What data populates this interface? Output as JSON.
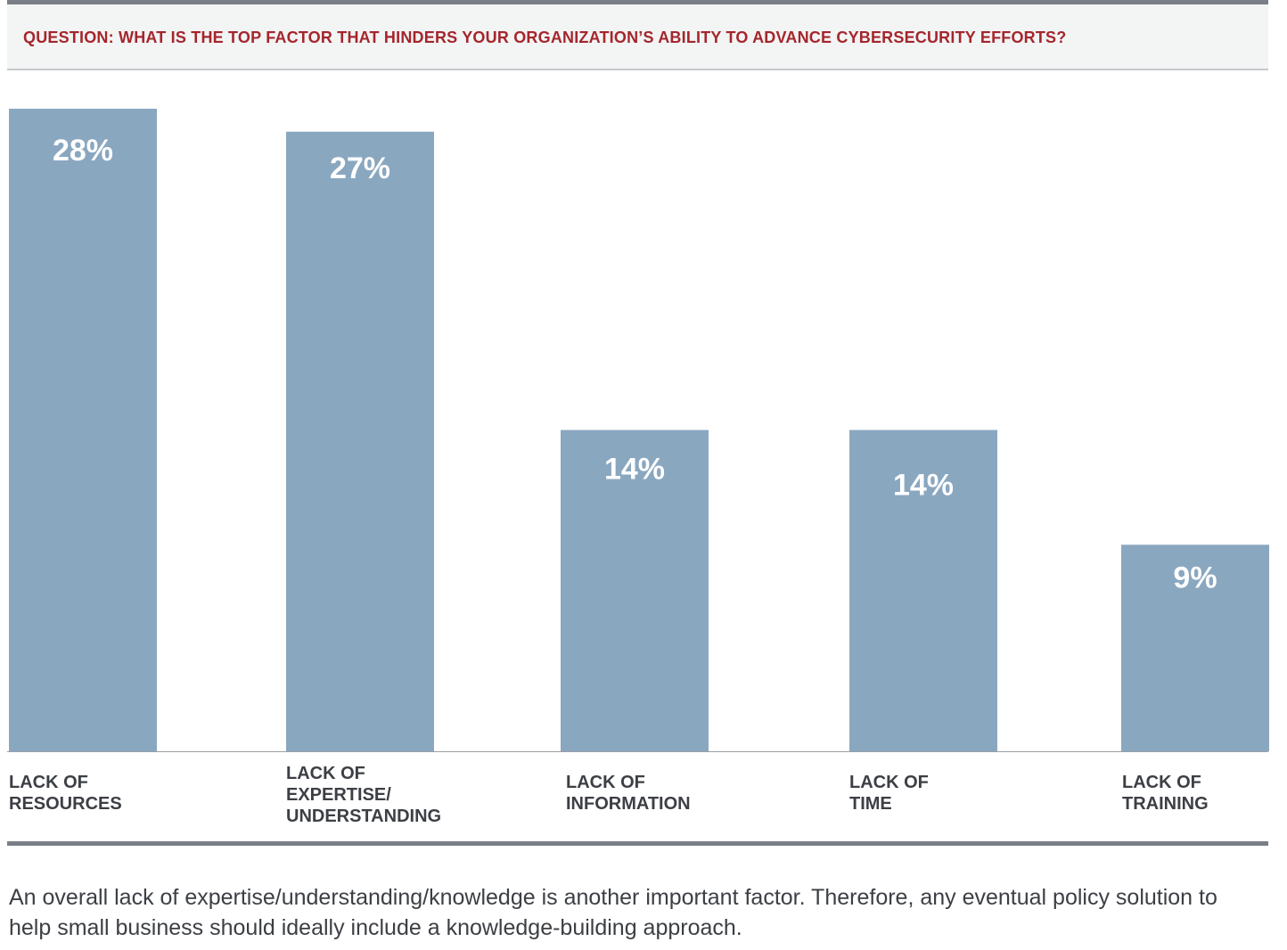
{
  "header": {
    "question": "QUESTION: WHAT IS THE TOP FACTOR THAT HINDERS YOUR ORGANIZATION’S ABILITY TO ADVANCE CYBERSECURITY EFFORTS?"
  },
  "chart_data": {
    "type": "bar",
    "categories": [
      [
        "LACK OF",
        "RESOURCES"
      ],
      [
        "LACK OF",
        "EXPERTISE/",
        "UNDERSTANDING"
      ],
      [
        "LACK OF",
        "INFORMATION"
      ],
      [
        "LACK OF",
        "TIME"
      ],
      [
        "LACK OF",
        "TRAINING"
      ]
    ],
    "values": [
      28,
      27,
      14,
      14,
      9
    ],
    "value_labels": [
      "28%",
      "27%",
      "14%",
      "14%",
      "9%"
    ],
    "title": "",
    "xlabel": "",
    "ylabel": "",
    "ylim": [
      0,
      28
    ],
    "grid": false,
    "bar_color": "#8aa7c0",
    "label_color": "#ffffff"
  },
  "caption": "An overall lack of expertise/understanding/knowledge is another important factor. Therefore, any eventual policy solution to help small business should ideally include a knowledge-building approach.",
  "colors": {
    "accent": "#a4262c",
    "rule": "#7a7f87",
    "text": "#3c3f44"
  }
}
